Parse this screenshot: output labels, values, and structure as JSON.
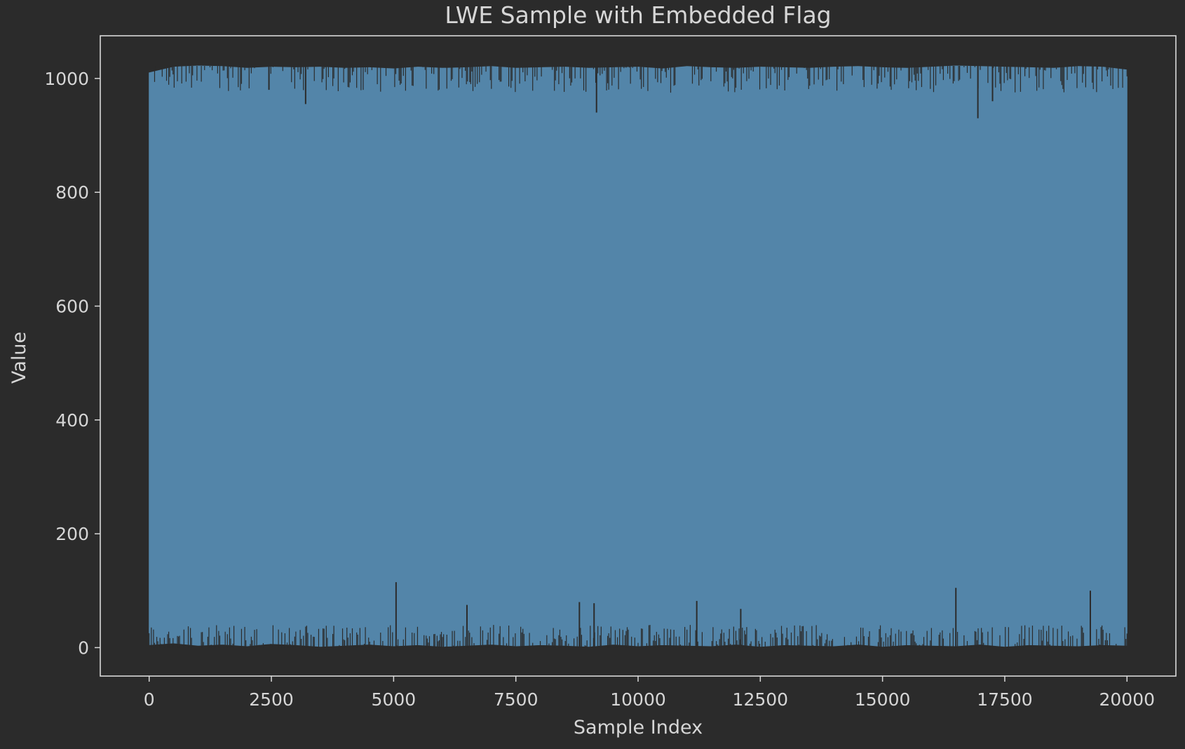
{
  "chart_data": {
    "type": "line",
    "title": "LWE Sample with Embedded Flag",
    "xlabel": "Sample Index",
    "ylabel": "Value",
    "xlim": [
      -1000,
      21000
    ],
    "ylim": [
      -50,
      1075
    ],
    "xticks": [
      0,
      2500,
      5000,
      7500,
      10000,
      12500,
      15000,
      17500,
      20000
    ],
    "yticks": [
      0,
      200,
      400,
      600,
      800,
      1000
    ],
    "grid": false,
    "n_samples": 20000,
    "value_range": [
      0,
      1023
    ],
    "series": [
      {
        "name": "",
        "color": "#5385a9",
        "envelope_x": [
          0,
          500,
          1000,
          1500,
          2000,
          2500,
          3000,
          3500,
          4000,
          4500,
          5000,
          5500,
          6000,
          6500,
          7000,
          7500,
          8000,
          8500,
          9000,
          9500,
          10000,
          10500,
          11000,
          11500,
          12000,
          12500,
          13000,
          13500,
          14000,
          14500,
          15000,
          15500,
          16000,
          16500,
          17000,
          17500,
          18000,
          18500,
          19000,
          19500,
          20000
        ],
        "envelope_max": [
          1010,
          1020,
          1022,
          1021,
          1018,
          1020,
          1019,
          1020,
          1018,
          1019,
          1017,
          1020,
          1018,
          1019,
          1021,
          1018,
          1019,
          1020,
          1018,
          1019,
          1020,
          1017,
          1021,
          1019,
          1018,
          1020,
          1019,
          1018,
          1020,
          1021,
          1019,
          1018,
          1020,
          1022,
          1021,
          1020,
          1019,
          1018,
          1021,
          1020,
          1015
        ],
        "envelope_min": [
          5,
          8,
          4,
          6,
          3,
          7,
          5,
          2,
          4,
          6,
          3,
          5,
          2,
          4,
          6,
          3,
          5,
          4,
          2,
          6,
          3,
          5,
          4,
          3,
          6,
          2,
          5,
          4,
          3,
          6,
          2,
          5,
          4,
          3,
          6,
          2,
          5,
          4,
          3,
          5,
          4
        ],
        "low_spikes": [
          [
            5050,
            115
          ],
          [
            6500,
            75
          ],
          [
            8800,
            80
          ],
          [
            9100,
            78
          ],
          [
            11200,
            82
          ],
          [
            12100,
            68
          ],
          [
            16500,
            105
          ],
          [
            19250,
            100
          ]
        ],
        "high_dips": [
          [
            3200,
            955
          ],
          [
            9150,
            940
          ],
          [
            16950,
            930
          ],
          [
            17250,
            960
          ],
          [
            2450,
            980
          ]
        ]
      }
    ]
  }
}
